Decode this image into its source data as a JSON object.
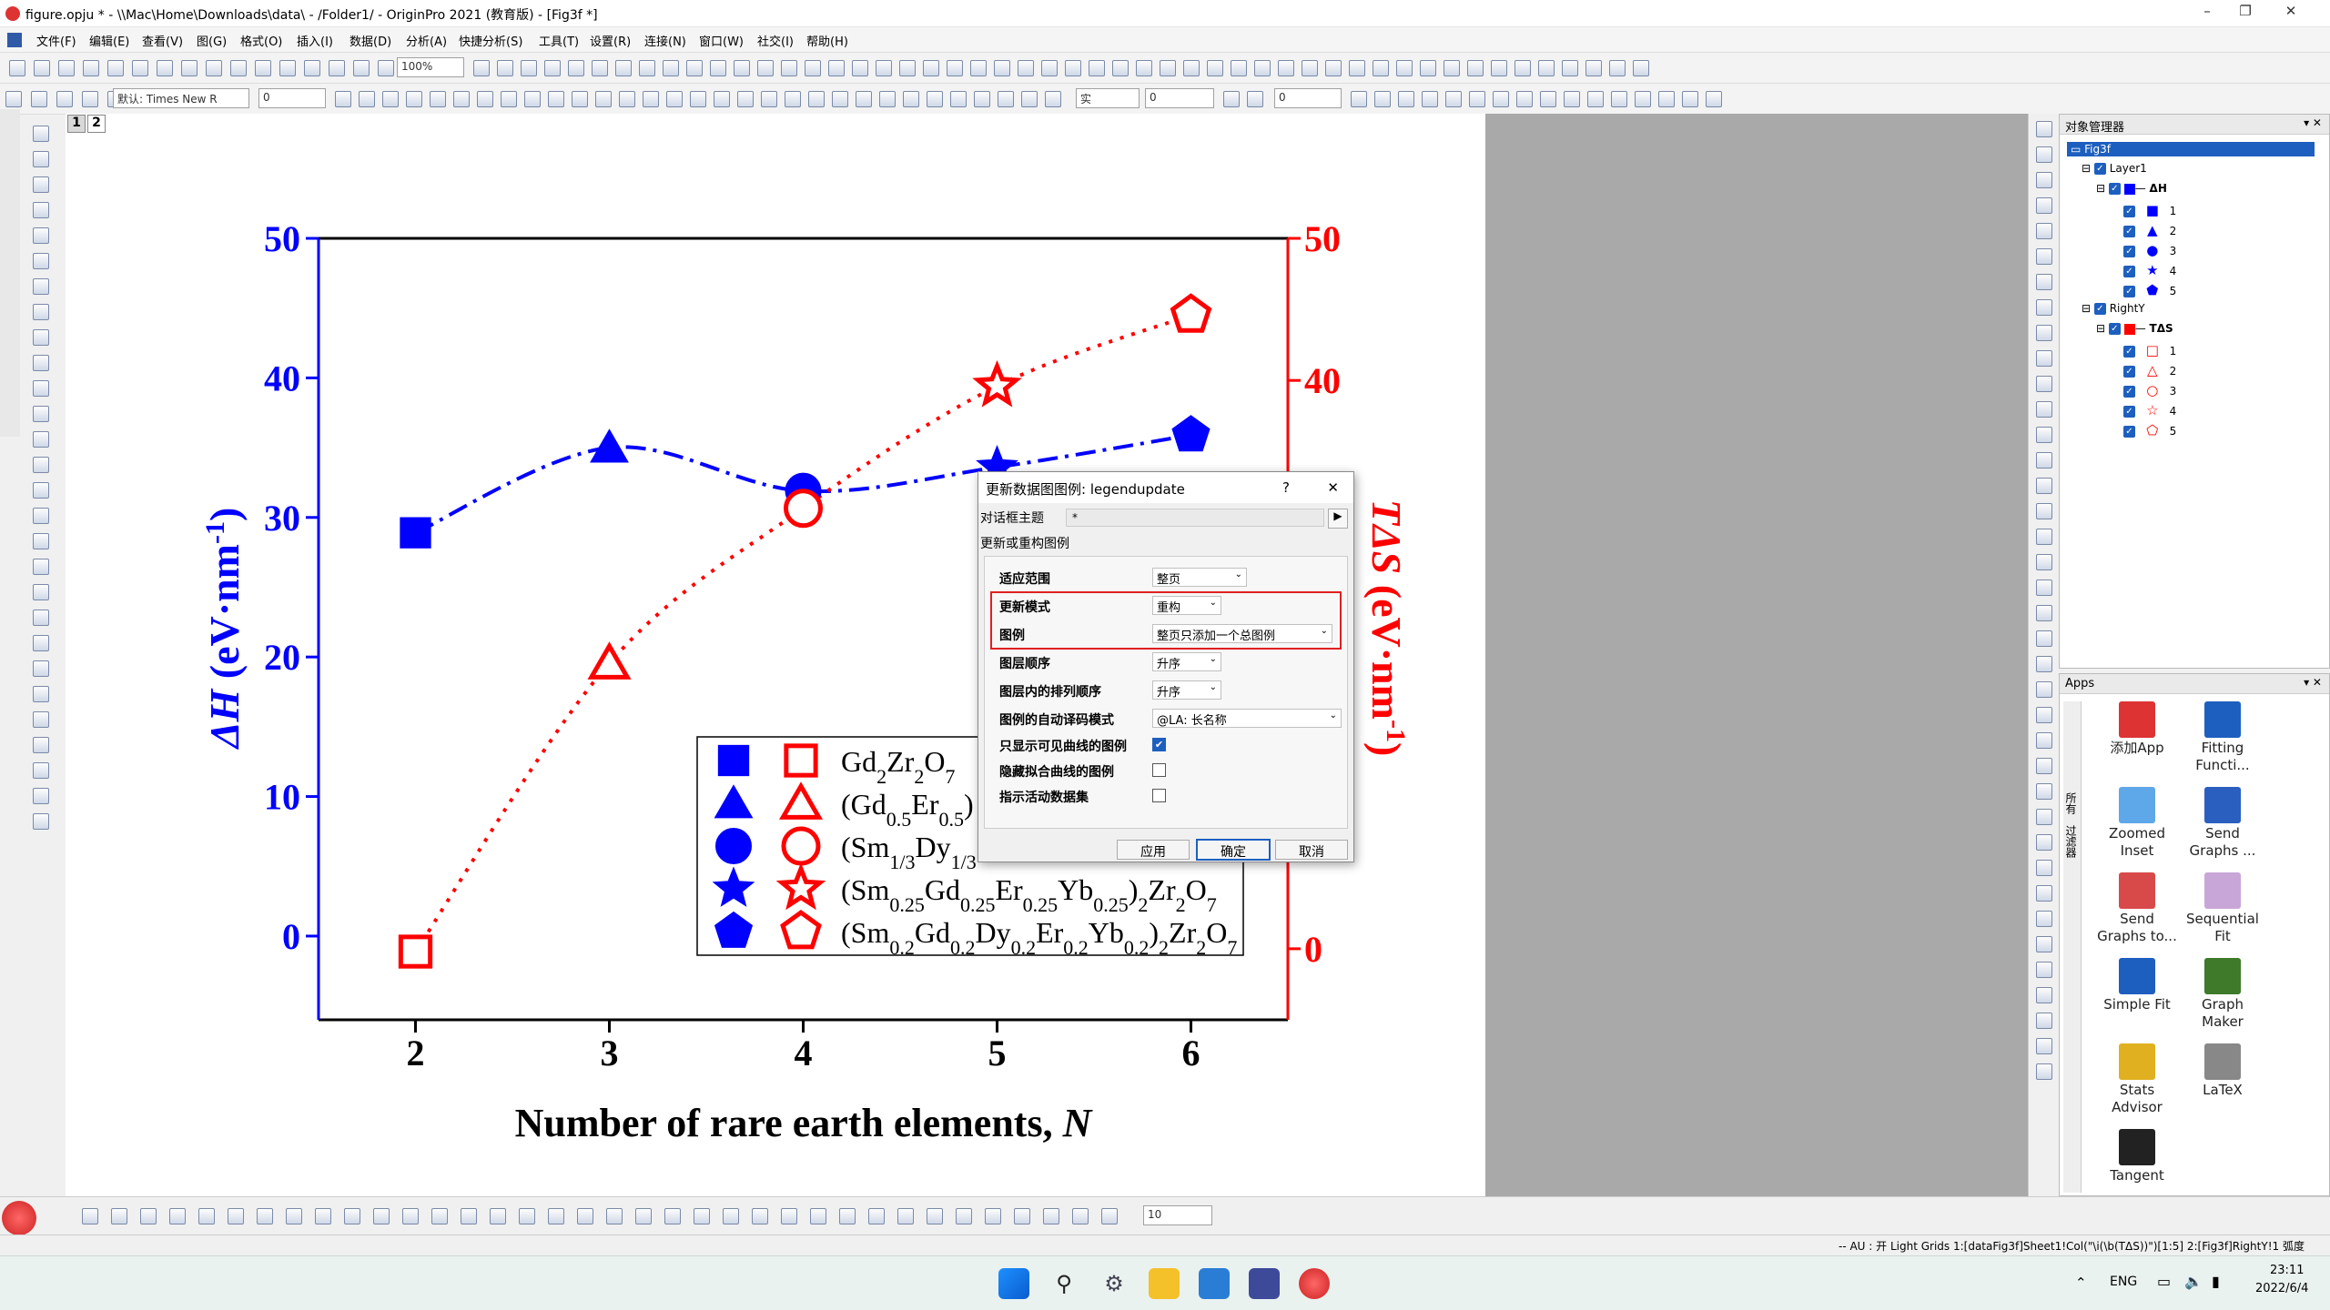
{
  "window": {
    "title": "figure.opju * - \\\\Mac\\Home\\Downloads\\data\\ - /Folder1/ - OriginPro 2021 (教育版) - [Fig3f *]"
  },
  "menu": [
    "文件(F)",
    "编辑(E)",
    "查看(V)",
    "图(G)",
    "格式(O)",
    "插入(I)",
    "数据(D)",
    "分析(A)",
    "快捷分析(S)",
    "工具(T)",
    "设置(R)",
    "连接(N)",
    "窗口(W)",
    "社交(I)",
    "帮助(H)"
  ],
  "toolbar": {
    "zoom": "100%",
    "font": "默认: Times New R",
    "font_size": "0",
    "line_style": "实",
    "line_width": "0",
    "fill_value": "0",
    "bottom_size": "10"
  },
  "page_tabs": [
    "1",
    "2"
  ],
  "chart_data": {
    "type": "line",
    "x": [
      2,
      3,
      4,
      5,
      6
    ],
    "series": [
      {
        "name": "ΔH",
        "axis": "left",
        "color": "#0000ff",
        "values": [
          28.9,
          35.0,
          31.9,
          33.6,
          35.9
        ]
      },
      {
        "name": "TΔS",
        "axis": "right",
        "color": "#ff0000",
        "values": [
          -0.2,
          20.1,
          31.0,
          39.6,
          44.6
        ]
      }
    ],
    "xlabel_text": "Number of rare earth elements, ",
    "xlabel_var": "N",
    "ylabel_left_var": "ΔH",
    "ylabel_left_unit": " (eV·nm",
    "ylabel_left_exp": "-1",
    "ylabel_right_var": "TΔS",
    "ylabel_right_unit": " (eV·nm",
    "ylabel_right_exp": "-1",
    "xticks": [
      "2",
      "3",
      "4",
      "5",
      "6"
    ],
    "yticks_left": [
      "0",
      "10",
      "20",
      "30",
      "40",
      "50"
    ],
    "yticks_right": [
      "0",
      "10",
      "20",
      "30",
      "40",
      "50"
    ],
    "ylim_left": [
      -6,
      50
    ],
    "ylim_right": [
      -5,
      50
    ],
    "xlim": [
      1.5,
      6.5
    ],
    "legend": {
      "placement": "bottom-center",
      "rows": [
        {
          "marker": "square",
          "parts": [
            [
              "Gd",
              ""
            ],
            [
              "2",
              ".sub"
            ],
            [
              "Zr",
              ""
            ],
            [
              "2",
              ".sub"
            ],
            [
              "O",
              ""
            ],
            [
              "7",
              ".sub"
            ]
          ]
        },
        {
          "marker": "triangle",
          "parts": [
            [
              "(Gd",
              ""
            ],
            [
              "0.5",
              ".sub"
            ],
            [
              "Er",
              ""
            ],
            [
              "0.5",
              ".sub"
            ],
            [
              ")",
              ""
            ]
          ]
        },
        {
          "marker": "circle",
          "parts": [
            [
              "(Sm",
              ""
            ],
            [
              "1/3",
              ".sub"
            ],
            [
              "Dy",
              ""
            ],
            [
              "1/3",
              ".sub"
            ]
          ]
        },
        {
          "marker": "star",
          "parts": [
            [
              "(Sm",
              ""
            ],
            [
              "0.25",
              ".sub"
            ],
            [
              "Gd",
              ""
            ],
            [
              "0.25",
              ".sub"
            ],
            [
              "Er",
              ""
            ],
            [
              "0.25",
              ".sub"
            ],
            [
              "Yb",
              ""
            ],
            [
              "0.25",
              ".sub"
            ],
            [
              ")",
              ""
            ],
            [
              "2",
              ".sub"
            ],
            [
              "Zr",
              ""
            ],
            [
              "2",
              ".sub"
            ],
            [
              "O",
              ""
            ],
            [
              "7",
              ".sub"
            ]
          ]
        },
        {
          "marker": "pentagon",
          "parts": [
            [
              "(Sm",
              ""
            ],
            [
              "0.2",
              ".sub"
            ],
            [
              "Gd",
              ""
            ],
            [
              "0.2",
              ".sub"
            ],
            [
              "Dy",
              ""
            ],
            [
              "0.2",
              ".sub"
            ],
            [
              "Er",
              ""
            ],
            [
              "0.2",
              ".sub"
            ],
            [
              "Yb",
              ""
            ],
            [
              "0.2",
              ".sub"
            ],
            [
              ")",
              ""
            ],
            [
              "2",
              ".sub"
            ],
            [
              "Zr",
              ""
            ],
            [
              "2",
              ".sub"
            ],
            [
              "O",
              ""
            ],
            [
              "7",
              ".sub"
            ]
          ]
        }
      ]
    }
  },
  "object_manager": {
    "title": "对象管理器",
    "page": "Fig3f",
    "layer1": "Layer1",
    "plot1": "ΔH",
    "layer2": "RightY",
    "plot2": "TΔS",
    "items": [
      "1",
      "2",
      "3",
      "4",
      "5"
    ]
  },
  "apps": {
    "title": "Apps",
    "list": [
      "添加App",
      "Fitting Functi...",
      "Zoomed Inset",
      "Send Graphs ...",
      "Send Graphs to...",
      "Sequential Fit",
      "Simple Fit",
      "Graph Maker",
      "Stats Advisor",
      "LaTeX",
      "Tangent"
    ],
    "side_tabs": [
      "所有",
      "过滤器"
    ]
  },
  "dialog": {
    "title": "更新数据图图例: legendupdate",
    "help": "?",
    "close": "✕",
    "theme_label": "对话框主题",
    "theme_value": "*",
    "subtitle": "更新或重构图例",
    "rows": [
      {
        "label": "适应范围",
        "value": "整页"
      },
      {
        "label": "更新模式",
        "value": "重构"
      },
      {
        "label": "图例",
        "value": "整页只添加一个总图例"
      },
      {
        "label": "图层顺序",
        "value": "升序"
      },
      {
        "label": "图层内的排列顺序",
        "value": "升序"
      },
      {
        "label": "图例的自动译码模式",
        "value": "@LA: 长名称"
      }
    ],
    "checks": [
      {
        "label": "只显示可见曲线的图例",
        "checked": "✔"
      },
      {
        "label": "隐藏拟合曲线的图例",
        "checked": ""
      },
      {
        "label": "指示活动数据集",
        "checked": ""
      }
    ],
    "buttons": {
      "apply": "应用",
      "ok": "确定",
      "cancel": "取消"
    },
    "highlight_color": "#e02020"
  },
  "status": {
    "text": "-- AU : 开 Light Grids 1:[dataFig3f]Sheet1!Col(\"\\i(\\b(TΔS))\")[1:5] 2:[Fig3f]RightY!1 弧度"
  },
  "taskbar": {
    "lang": "ENG",
    "time": "23:11",
    "date": "2022/6/4"
  }
}
